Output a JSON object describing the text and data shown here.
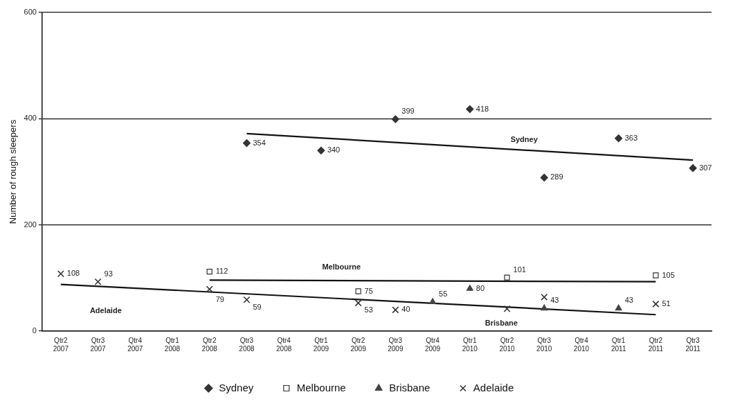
{
  "chart_data": {
    "type": "scatter",
    "ylabel": "Number of rough sleepers",
    "categories": [
      "Qtr2 2007",
      "Qtr3 2007",
      "Qtr4 2007",
      "Qtr1 2008",
      "Qtr2 2008",
      "Qtr3 2008",
      "Qtr4 2008",
      "Qtr1 2009",
      "Qtr2 2009",
      "Qtr3 2009",
      "Qtr4 2009",
      "Qtr1 2010",
      "Qtr2 2010",
      "Qtr3 2010",
      "Qtr4 2010",
      "Qtr1 2011",
      "Qtr2 2011",
      "Qtr3 2011"
    ],
    "series": [
      {
        "name": "Sydney",
        "color": "#333333",
        "marker": "diamond",
        "values": [
          null,
          null,
          null,
          null,
          null,
          354,
          null,
          340,
          null,
          399,
          null,
          418,
          null,
          289,
          null,
          363,
          null,
          307
        ],
        "value_labels": [
          null,
          null,
          null,
          null,
          null,
          "354",
          null,
          "340",
          null,
          "399",
          null,
          "418",
          null,
          "289",
          null,
          "363",
          null,
          "307"
        ]
      },
      {
        "name": "Melbourne",
        "color": "#333333",
        "marker": "square",
        "values": [
          null,
          null,
          null,
          null,
          112,
          null,
          null,
          null,
          75,
          null,
          null,
          null,
          101,
          null,
          null,
          null,
          105,
          null
        ],
        "value_labels": [
          null,
          null,
          null,
          null,
          "112",
          null,
          null,
          null,
          "75",
          null,
          null,
          null,
          "101",
          null,
          null,
          null,
          "105",
          null
        ]
      },
      {
        "name": "Brisbane",
        "color": "#444444",
        "marker": "triangle",
        "values": [
          null,
          null,
          null,
          null,
          null,
          null,
          null,
          null,
          null,
          null,
          55,
          80,
          null,
          43,
          null,
          43,
          null,
          null
        ],
        "value_labels": [
          null,
          null,
          null,
          null,
          null,
          null,
          null,
          null,
          null,
          null,
          "55",
          "80",
          null,
          "43",
          null,
          "43",
          null,
          null
        ]
      },
      {
        "name": "Adelaide",
        "color": "#333333",
        "marker": "cross",
        "values": [
          108,
          93,
          null,
          null,
          79,
          59,
          null,
          null,
          53,
          40,
          null,
          null,
          42,
          64,
          null,
          null,
          51,
          null
        ],
        "value_labels": [
          "108",
          "93",
          null,
          null,
          "79",
          "59",
          null,
          null,
          "53",
          "40",
          null,
          null,
          null,
          null,
          null,
          null,
          "51",
          null
        ]
      },
      {
        "type": "line",
        "color": "#111111",
        "x": [
          "Qtr3 2008",
          "Qtr3 2011"
        ],
        "values": [
          372,
          322
        ]
      },
      {
        "type": "line",
        "color": "#111111",
        "x": [
          "Qtr2 2008",
          "Qtr2 2011"
        ],
        "values": [
          96,
          93
        ]
      },
      {
        "type": "line",
        "color": "#111111",
        "x": [
          "Qtr2 2007",
          "Qtr2 2011"
        ],
        "values": [
          88,
          31
        ]
      }
    ],
    "annotations": [
      "Sydney",
      "Melbourne",
      "Brisbane",
      "Adelaide"
    ],
    "ylim": [
      0,
      600
    ],
    "yticks": [
      0,
      200,
      400,
      600
    ],
    "grid": "y",
    "legend": "bottom"
  }
}
